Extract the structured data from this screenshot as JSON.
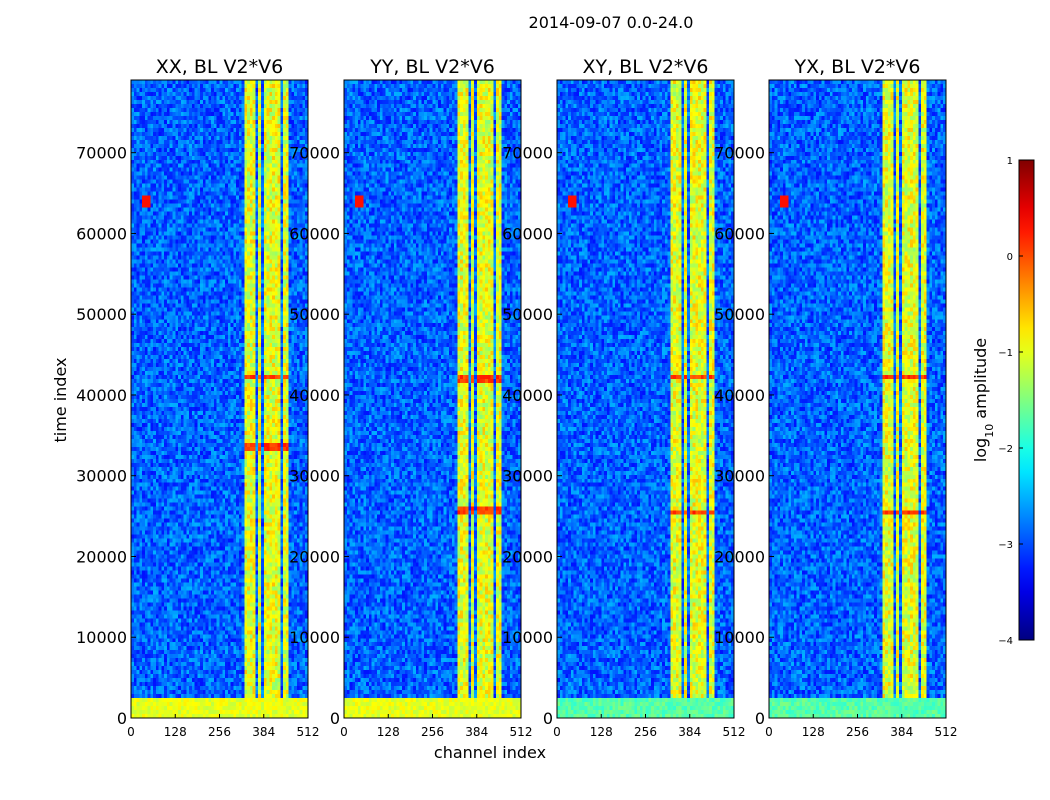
{
  "chart_data": {
    "type": "heatmap",
    "title": "2014-09-07 0.0-24.0",
    "xlabel": "channel index",
    "ylabel": "time index",
    "colorbar_label_main": "log",
    "colorbar_label_sub": "10",
    "colorbar_label_rest": " amplitude",
    "xlim": [
      0,
      512
    ],
    "ylim": [
      0,
      79000
    ],
    "xticks": [
      "0",
      "128",
      "256",
      "384",
      "512"
    ],
    "yticks": [
      "0",
      "10000",
      "20000",
      "30000",
      "40000",
      "50000",
      "60000",
      "70000"
    ],
    "xtick_values": [
      0,
      128,
      256,
      384,
      512
    ],
    "ytick_values": [
      0,
      10000,
      20000,
      30000,
      40000,
      50000,
      60000,
      70000
    ],
    "colorbar_ticks": [
      "1",
      "0",
      "−1",
      "−2",
      "−3",
      "−4"
    ],
    "colorbar_values": [
      1,
      0,
      -1,
      -2,
      -3,
      -4
    ],
    "colormap": "jet",
    "value_range": [
      -4,
      1
    ],
    "panels": [
      {
        "name": "XX",
        "title": "XX, BL V2*V6",
        "bright_bands": [
          [
            3,
            8
          ],
          [
            42000,
            42500
          ],
          [
            33000,
            34000
          ]
        ],
        "strong_low_rows": true
      },
      {
        "name": "YY",
        "title": "YY, BL V2*V6",
        "bright_bands": [
          [
            25000,
            26000
          ],
          [
            41500,
            42500
          ]
        ],
        "strong_low_rows": true
      },
      {
        "name": "XY",
        "title": "XY, BL V2*V6",
        "bright_bands": [
          [
            25000,
            25600
          ],
          [
            42000,
            42400
          ]
        ],
        "strong_low_rows": false
      },
      {
        "name": "YX",
        "title": "YX, BL V2*V6",
        "bright_bands": [
          [
            25000,
            25600
          ],
          [
            42000,
            42400
          ]
        ],
        "strong_low_rows": false
      }
    ],
    "rfi_channel_bands": [
      [
        330,
        360
      ],
      [
        366,
        378
      ],
      [
        386,
        396
      ],
      [
        404,
        414
      ],
      [
        420,
        428
      ],
      [
        440,
        452
      ]
    ],
    "background_level": -2.9
  }
}
